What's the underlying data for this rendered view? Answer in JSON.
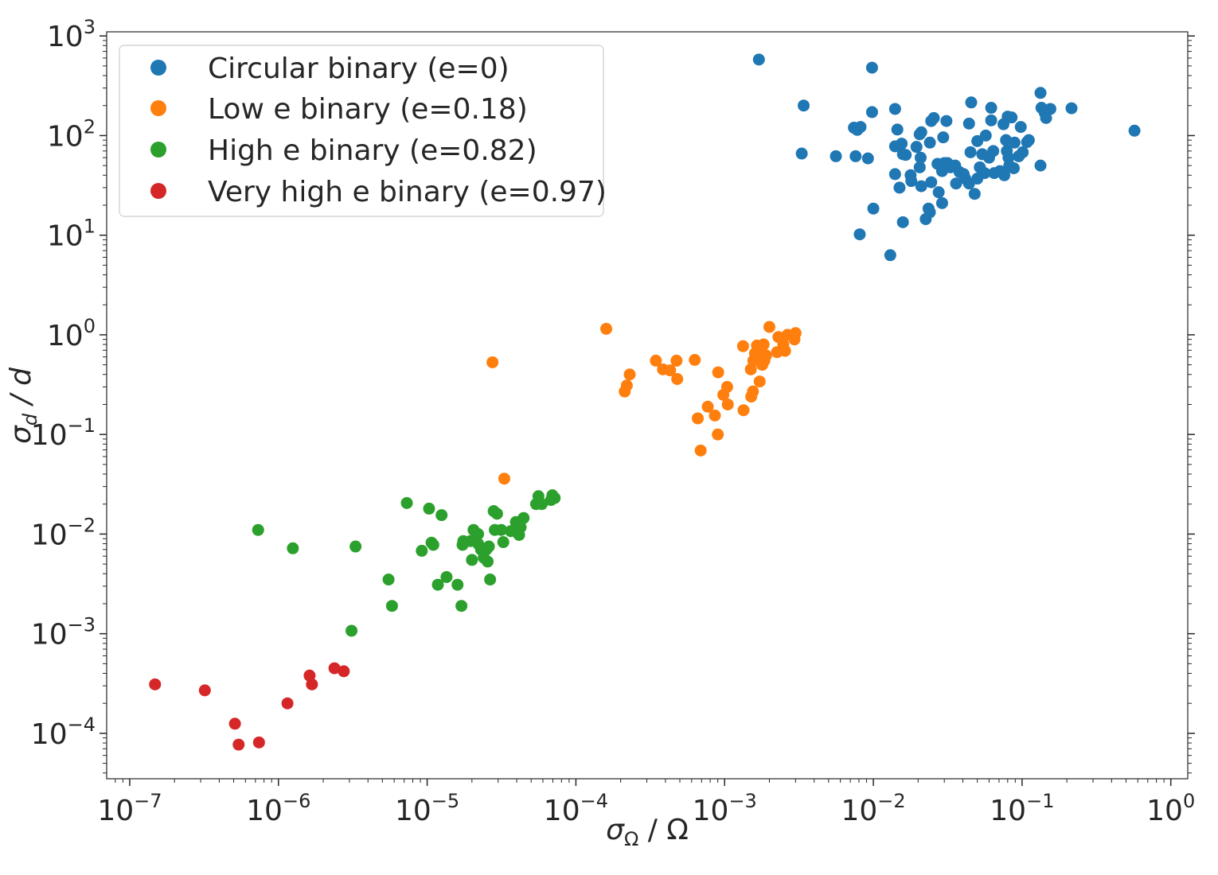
{
  "chart_data": {
    "type": "scatter",
    "x_scale": "log",
    "y_scale": "log",
    "xlabel": {
      "symbol": "σ",
      "sub": "Ω",
      "rest": " / Ω"
    },
    "ylabel": {
      "symbol": "σ",
      "sub": "d",
      "rest": " / d"
    },
    "xlim": [
      7e-08,
      1.3
    ],
    "ylim": [
      3.5e-05,
      1100
    ],
    "x_major_exponents": [
      -7,
      -6,
      -5,
      -4,
      -3,
      -2,
      -1,
      0
    ],
    "y_major_exponents": [
      -4,
      -3,
      -2,
      -1,
      0,
      1,
      2,
      3
    ],
    "tick_base": "10",
    "legend_position": "upper-left",
    "grid": false,
    "series": [
      {
        "name": "Circular binary (e=0)",
        "color": "#1f77b4",
        "points": [
          [
            0.0017,
            580
          ],
          [
            0.0034,
            200
          ],
          [
            0.0033,
            66
          ],
          [
            0.0098,
            480
          ],
          [
            0.0098,
            172
          ],
          [
            0.0056,
            62
          ],
          [
            0.0074,
            120
          ],
          [
            0.0078,
            114
          ],
          [
            0.0082,
            122
          ],
          [
            0.0076,
            62
          ],
          [
            0.0092,
            59
          ],
          [
            0.01,
            18.5
          ],
          [
            0.0081,
            10.2
          ],
          [
            0.013,
            6.3
          ],
          [
            0.014,
            185
          ],
          [
            0.0145,
            115
          ],
          [
            0.014,
            78
          ],
          [
            0.0155,
            83
          ],
          [
            0.0158,
            65
          ],
          [
            0.0165,
            64
          ],
          [
            0.014,
            41
          ],
          [
            0.015,
            30
          ],
          [
            0.0158,
            13.5
          ],
          [
            0.0178,
            40
          ],
          [
            0.018,
            35
          ],
          [
            0.0195,
            77
          ],
          [
            0.0205,
            103
          ],
          [
            0.021,
            108
          ],
          [
            0.0208,
            60
          ],
          [
            0.0205,
            48
          ],
          [
            0.021,
            31
          ],
          [
            0.0225,
            14.5
          ],
          [
            0.0235,
            18.5
          ],
          [
            0.024,
            17
          ],
          [
            0.024,
            85
          ],
          [
            0.0245,
            140
          ],
          [
            0.0255,
            150
          ],
          [
            0.0245,
            34
          ],
          [
            0.027,
            52
          ],
          [
            0.0275,
            27
          ],
          [
            0.029,
            21
          ],
          [
            0.0295,
            96
          ],
          [
            0.031,
            140
          ],
          [
            0.029,
            44
          ],
          [
            0.0315,
            53
          ],
          [
            0.03,
            53
          ],
          [
            0.033,
            48
          ],
          [
            0.0355,
            50
          ],
          [
            0.036,
            33
          ],
          [
            0.038,
            43
          ],
          [
            0.0405,
            41
          ],
          [
            0.0415,
            37
          ],
          [
            0.044,
            132
          ],
          [
            0.0455,
            215
          ],
          [
            0.045,
            68
          ],
          [
            0.044,
            33
          ],
          [
            0.048,
            26
          ],
          [
            0.05,
            88
          ],
          [
            0.05,
            37
          ],
          [
            0.052,
            48
          ],
          [
            0.054,
            65
          ],
          [
            0.056,
            42
          ],
          [
            0.057,
            100
          ],
          [
            0.06,
            60
          ],
          [
            0.062,
            190
          ],
          [
            0.062,
            142
          ],
          [
            0.064,
            70
          ],
          [
            0.065,
            42
          ],
          [
            0.071,
            44
          ],
          [
            0.075,
            130
          ],
          [
            0.076,
            40
          ],
          [
            0.078,
            90
          ],
          [
            0.079,
            70
          ],
          [
            0.08,
            155
          ],
          [
            0.081,
            60
          ],
          [
            0.082,
            50
          ],
          [
            0.085,
            152
          ],
          [
            0.088,
            47
          ],
          [
            0.089,
            85
          ],
          [
            0.095,
            62
          ],
          [
            0.098,
            122
          ],
          [
            0.101,
            68
          ],
          [
            0.108,
            86
          ],
          [
            0.111,
            90
          ],
          [
            0.133,
            268
          ],
          [
            0.133,
            50
          ],
          [
            0.135,
            190
          ],
          [
            0.142,
            170
          ],
          [
            0.145,
            150
          ],
          [
            0.155,
            185
          ],
          [
            0.215,
            188
          ],
          [
            0.57,
            112
          ]
        ]
      },
      {
        "name": "Low e binary (e=0.18)",
        "color": "#ff7f0e",
        "points": [
          [
            2.75e-05,
            0.53
          ],
          [
            3.3e-05,
            0.036
          ],
          [
            0.00016,
            1.15
          ],
          [
            0.000213,
            0.27
          ],
          [
            0.00022,
            0.31
          ],
          [
            0.00023,
            0.4
          ],
          [
            0.000345,
            0.55
          ],
          [
            0.000385,
            0.45
          ],
          [
            0.00043,
            0.44
          ],
          [
            0.000475,
            0.55
          ],
          [
            0.00048,
            0.36
          ],
          [
            0.00063,
            0.56
          ],
          [
            0.00066,
            0.145
          ],
          [
            0.00069,
            0.069
          ],
          [
            0.00077,
            0.19
          ],
          [
            0.00086,
            0.155
          ],
          [
            0.0009,
            0.1
          ],
          [
            0.000905,
            0.42
          ],
          [
            0.00098,
            0.25
          ],
          [
            0.00104,
            0.3
          ],
          [
            0.00105,
            0.2
          ],
          [
            0.00133,
            0.77
          ],
          [
            0.00134,
            0.175
          ],
          [
            0.0015,
            0.45
          ],
          [
            0.00151,
            0.24
          ],
          [
            0.00155,
            0.27
          ],
          [
            0.00156,
            0.55
          ],
          [
            0.0016,
            0.65
          ],
          [
            0.00165,
            0.78
          ],
          [
            0.0017,
            0.7
          ],
          [
            0.00172,
            0.34
          ],
          [
            0.00176,
            0.61
          ],
          [
            0.00179,
            0.5
          ],
          [
            0.00183,
            0.8
          ],
          [
            0.00185,
            0.55
          ],
          [
            0.0019,
            0.62
          ],
          [
            0.002,
            1.2
          ],
          [
            0.00225,
            0.67
          ],
          [
            0.0023,
            0.95
          ],
          [
            0.00248,
            0.8
          ],
          [
            0.00255,
            0.69
          ],
          [
            0.00265,
            1.0
          ],
          [
            0.00295,
            0.9
          ],
          [
            0.003,
            1.04
          ]
        ]
      },
      {
        "name": "High e binary (e=0.82)",
        "color": "#2ca02c",
        "points": [
          [
            7.3e-07,
            0.011
          ],
          [
            1.25e-06,
            0.0072
          ],
          [
            3.1e-06,
            0.00107
          ],
          [
            3.3e-06,
            0.0075
          ],
          [
            5.5e-06,
            0.0035
          ],
          [
            5.8e-06,
            0.0019
          ],
          [
            7.3e-06,
            0.0205
          ],
          [
            9.2e-06,
            0.0068
          ],
          [
            1.03e-05,
            0.018
          ],
          [
            1.07e-05,
            0.0082
          ],
          [
            1.1e-05,
            0.0078
          ],
          [
            1.18e-05,
            0.0031
          ],
          [
            1.25e-05,
            0.0155
          ],
          [
            1.35e-05,
            0.0037
          ],
          [
            1.6e-05,
            0.0031
          ],
          [
            1.7e-05,
            0.0019
          ],
          [
            1.73e-05,
            0.0078
          ],
          [
            1.75e-05,
            0.0085
          ],
          [
            1.95e-05,
            0.0085
          ],
          [
            2e-05,
            0.0055
          ],
          [
            2.05e-05,
            0.011
          ],
          [
            2.2e-05,
            0.01
          ],
          [
            2.2e-05,
            0.008
          ],
          [
            2.3e-05,
            0.007
          ],
          [
            2.4e-05,
            0.0058
          ],
          [
            2.5e-05,
            0.007
          ],
          [
            2.55e-05,
            0.0053
          ],
          [
            2.6e-05,
            0.0075
          ],
          [
            2.65e-05,
            0.0035
          ],
          [
            2.8e-05,
            0.017
          ],
          [
            2.85e-05,
            0.011
          ],
          [
            2.95e-05,
            0.016
          ],
          [
            3.15e-05,
            0.011
          ],
          [
            3.25e-05,
            0.0083
          ],
          [
            3.65e-05,
            0.0107
          ],
          [
            3.95e-05,
            0.0132
          ],
          [
            4.15e-05,
            0.0098
          ],
          [
            4.25e-05,
            0.0117
          ],
          [
            4.45e-05,
            0.0145
          ],
          [
            5.4e-05,
            0.02
          ],
          [
            5.6e-05,
            0.024
          ],
          [
            5.9e-05,
            0.02
          ],
          [
            6.8e-05,
            0.022
          ],
          [
            6.95e-05,
            0.0245
          ],
          [
            7.2e-05,
            0.023
          ]
        ]
      },
      {
        "name": "Very high e binary (e=0.97)",
        "color": "#d62728",
        "points": [
          [
            1.48e-07,
            0.00031
          ],
          [
            3.2e-07,
            0.00027
          ],
          [
            5.1e-07,
            0.000125
          ],
          [
            5.4e-07,
            7.7e-05
          ],
          [
            7.4e-07,
            8.1e-05
          ],
          [
            1.15e-06,
            0.0002
          ],
          [
            1.62e-06,
            0.00038
          ],
          [
            1.68e-06,
            0.00031
          ],
          [
            2.38e-06,
            0.00045
          ],
          [
            2.75e-06,
            0.00042
          ]
        ]
      }
    ]
  }
}
